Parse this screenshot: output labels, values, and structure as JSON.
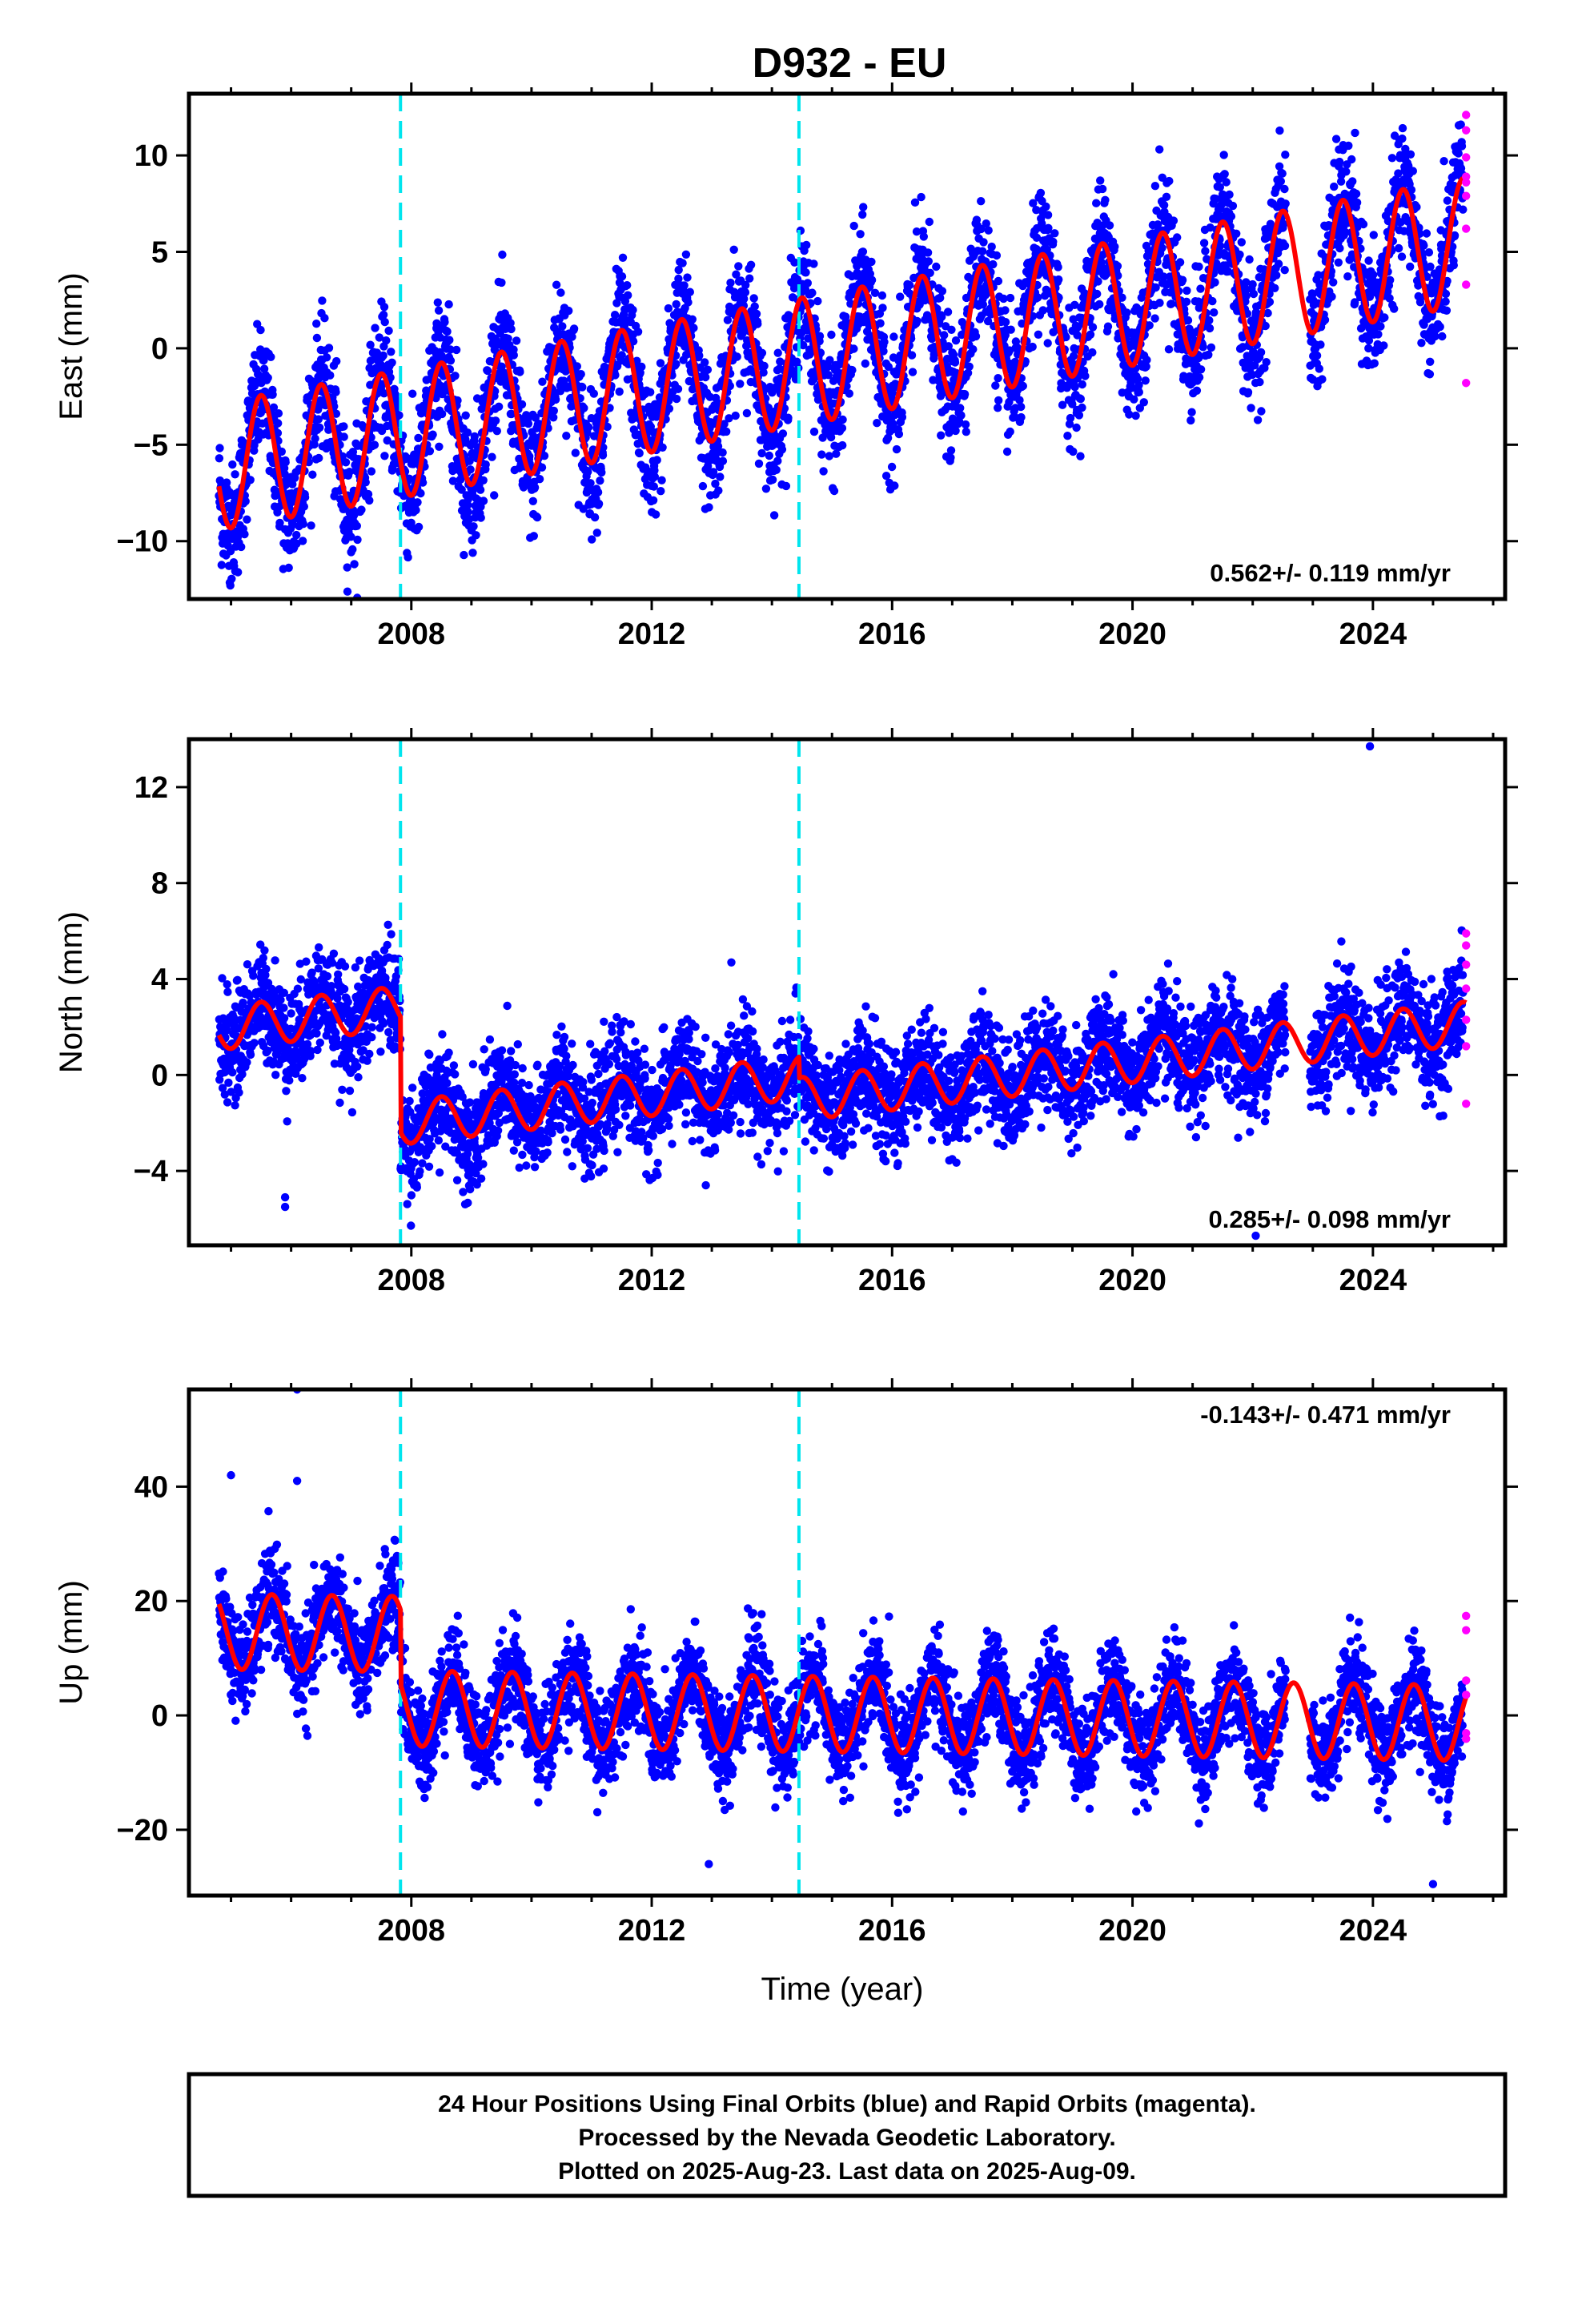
{
  "title": "D932 - EU",
  "chart_data": [
    {
      "type": "scatter",
      "component": "east",
      "ylabel": "East (mm)",
      "xlabel": "",
      "xlim": [
        2004.3,
        2026.2
      ],
      "ylim": [
        -13.0,
        13.2
      ],
      "xticks": [
        2008,
        2012,
        2016,
        2020,
        2024
      ],
      "yticks": [
        -10,
        -5,
        0,
        5,
        10
      ],
      "ytick_labels": [
        "−10",
        "−5",
        "0",
        "5",
        "10"
      ],
      "rate_label": "0.562+/- 0.119 mm/yr",
      "rate_position": "bottom-right",
      "series": [
        {
          "role": "final-orbits",
          "color": "#0000ff"
        },
        {
          "role": "rapid-orbits",
          "color": "#ff00ff",
          "x": [
            2025.55,
            2025.55,
            2025.55,
            2025.55,
            2025.55,
            2025.55,
            2025.55,
            2025.55,
            2025.55
          ],
          "y": [
            12.1,
            11.3,
            9.9,
            8.6,
            7.9,
            6.2,
            3.3,
            -1.8,
            8.9
          ]
        },
        {
          "role": "model-fit",
          "color": "#ff0000"
        }
      ],
      "model": {
        "start": 2004.8,
        "end": 2025.55,
        "intercept_2015": -0.4,
        "rate": 0.562,
        "annual_amplitude": 3.3,
        "peak_phase": 0.5,
        "offsets": [],
        "gap": [
          2022.5,
          2023.0
        ]
      },
      "point_cloud": {
        "start": 2004.8,
        "end": 2025.5,
        "scatter": 1.6
      },
      "vertical_markers": [
        2007.82,
        2014.45
      ]
    },
    {
      "type": "scatter",
      "component": "north",
      "ylabel": "North (mm)",
      "xlabel": "",
      "xlim": [
        2004.3,
        2026.2
      ],
      "ylim": [
        -7.1,
        14.0
      ],
      "xticks": [
        2008,
        2012,
        2016,
        2020,
        2024
      ],
      "yticks": [
        -4,
        0,
        4,
        8,
        12
      ],
      "ytick_labels": [
        "−4",
        "0",
        "4",
        "8",
        "12"
      ],
      "rate_label": "0.285+/- 0.098 mm/yr",
      "rate_position": "bottom-right",
      "series": [
        {
          "role": "final-orbits",
          "color": "#0000ff"
        },
        {
          "role": "rapid-orbits",
          "color": "#ff00ff",
          "x": [
            2025.55,
            2025.55,
            2025.55,
            2025.55,
            2025.55,
            2025.55,
            2025.55
          ],
          "y": [
            5.9,
            5.4,
            4.6,
            3.6,
            2.3,
            1.2,
            -1.2
          ]
        },
        {
          "role": "model-fit",
          "color": "#ff0000"
        }
      ],
      "model": {
        "start": 2004.8,
        "end": 2025.55,
        "intercept_2015": -0.85,
        "rate": 0.285,
        "annual_amplitude": 0.9,
        "peak_phase": 0.5,
        "offsets": [
          {
            "year": 2007.82,
            "step": -4.8
          },
          {
            "year": 2014.45,
            "step": -0.9
          }
        ],
        "gap": [
          2022.5,
          2023.0
        ]
      },
      "point_cloud": {
        "start": 2004.8,
        "end": 2025.5,
        "scatter": 1.1
      },
      "outliers": [
        [
          2023.95,
          13.7
        ],
        [
          2005.9,
          -5.1
        ],
        [
          2005.9,
          -5.5
        ],
        [
          2022.05,
          -6.7
        ]
      ],
      "vertical_markers": [
        2007.82,
        2014.45
      ]
    },
    {
      "type": "scatter",
      "component": "up",
      "ylabel": "Up (mm)",
      "xlabel": "Time (year)",
      "xlim": [
        2004.3,
        2026.2
      ],
      "ylim": [
        -31.5,
        57.0
      ],
      "xticks": [
        2008,
        2012,
        2016,
        2020,
        2024
      ],
      "yticks": [
        -20,
        0,
        20,
        40
      ],
      "ytick_labels": [
        "−20",
        "0",
        "20",
        "40"
      ],
      "rate_label": "-0.143+/- 0.471 mm/yr",
      "rate_position": "top-right",
      "series": [
        {
          "role": "final-orbits",
          "color": "#0000ff"
        },
        {
          "role": "rapid-orbits",
          "color": "#ff00ff",
          "x": [
            2025.55,
            2025.55,
            2025.55,
            2025.55,
            2025.55,
            2025.55
          ],
          "y": [
            17.4,
            14.9,
            6.1,
            3.6,
            -3.1,
            -4.1
          ]
        },
        {
          "role": "model-fit",
          "color": "#ff0000"
        }
      ],
      "model": {
        "start": 2004.8,
        "end": 2025.55,
        "intercept_2015": 0.2,
        "rate": -0.143,
        "annual_amplitude": 6.6,
        "peak_phase": 0.68,
        "offsets": [
          {
            "year": 2007.82,
            "step": -13.0
          }
        ],
        "gap": [
          2022.5,
          2023.0
        ]
      },
      "point_cloud": {
        "start": 2004.8,
        "end": 2025.5,
        "scatter": 4.2
      },
      "outliers": [
        [
          2006.1,
          57.0
        ],
        [
          2006.1,
          41.0
        ],
        [
          2005.0,
          42.0
        ],
        [
          2012.95,
          -26.0
        ],
        [
          2025.0,
          -29.5
        ]
      ],
      "vertical_markers": [
        2007.82,
        2014.45
      ]
    }
  ],
  "footer": {
    "lines": [
      "24 Hour Positions Using Final Orbits (blue) and Rapid Orbits (magenta).",
      "Processed by the Nevada Geodetic Laboratory.",
      "Plotted on 2025-Aug-23. Last data on 2025-Aug-09."
    ]
  }
}
